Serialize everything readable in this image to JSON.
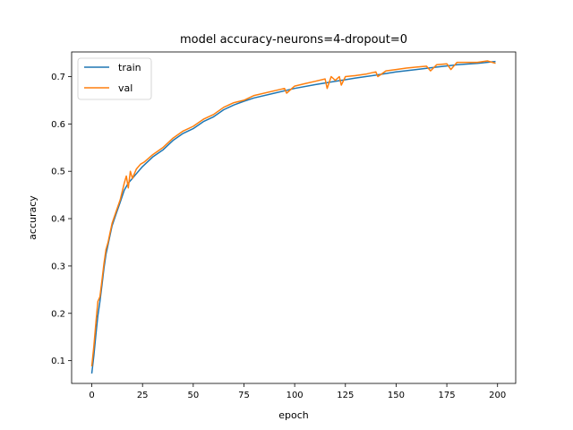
{
  "chart_data": {
    "type": "line",
    "title": "model accuracy-neurons=4-dropout=0",
    "xlabel": "epoch",
    "ylabel": "accuracy",
    "xlim": [
      -9.95,
      208.95
    ],
    "ylim": [
      0.052,
      0.752
    ],
    "xticks": [
      0,
      25,
      50,
      75,
      100,
      125,
      150,
      175,
      200
    ],
    "yticks": [
      0.1,
      0.2,
      0.3,
      0.4,
      0.5,
      0.6,
      0.7
    ],
    "ytick_labels": [
      "0.1",
      "0.2",
      "0.3",
      "0.4",
      "0.5",
      "0.6",
      "0.7"
    ],
    "grid": false,
    "legend": "upper left",
    "series": [
      {
        "name": "train",
        "color": "#1f77b4",
        "x": [
          0,
          1,
          2,
          3,
          4,
          5,
          6,
          7,
          8,
          9,
          10,
          12,
          14,
          16,
          18,
          20,
          22,
          25,
          30,
          35,
          40,
          45,
          50,
          55,
          60,
          65,
          70,
          75,
          80,
          90,
          100,
          110,
          120,
          130,
          140,
          150,
          160,
          170,
          180,
          190,
          199
        ],
        "values": [
          0.073,
          0.11,
          0.155,
          0.195,
          0.225,
          0.26,
          0.295,
          0.325,
          0.345,
          0.365,
          0.385,
          0.41,
          0.435,
          0.46,
          0.475,
          0.485,
          0.495,
          0.51,
          0.53,
          0.545,
          0.565,
          0.58,
          0.59,
          0.605,
          0.615,
          0.63,
          0.64,
          0.648,
          0.655,
          0.665,
          0.675,
          0.683,
          0.69,
          0.697,
          0.703,
          0.71,
          0.715,
          0.72,
          0.725,
          0.728,
          0.732
        ]
      },
      {
        "name": "val",
        "color": "#ff7f0e",
        "x": [
          0,
          1,
          2,
          3,
          4,
          5,
          6,
          7,
          8,
          9,
          10,
          12,
          14,
          16,
          17,
          18,
          19,
          20,
          21,
          22,
          24,
          26,
          30,
          35,
          40,
          45,
          50,
          55,
          60,
          65,
          70,
          75,
          80,
          90,
          95,
          96,
          100,
          105,
          110,
          115,
          116,
          118,
          120,
          122,
          123,
          125,
          130,
          135,
          140,
          141,
          145,
          150,
          155,
          160,
          165,
          167,
          170,
          175,
          177,
          180,
          185,
          190,
          195,
          199
        ],
        "values": [
          0.088,
          0.13,
          0.18,
          0.225,
          0.235,
          0.27,
          0.305,
          0.335,
          0.35,
          0.37,
          0.39,
          0.415,
          0.44,
          0.475,
          0.49,
          0.465,
          0.5,
          0.485,
          0.495,
          0.505,
          0.515,
          0.52,
          0.535,
          0.55,
          0.57,
          0.585,
          0.595,
          0.61,
          0.62,
          0.635,
          0.645,
          0.65,
          0.66,
          0.67,
          0.675,
          0.665,
          0.68,
          0.685,
          0.69,
          0.695,
          0.675,
          0.7,
          0.692,
          0.7,
          0.682,
          0.7,
          0.702,
          0.705,
          0.71,
          0.7,
          0.712,
          0.715,
          0.718,
          0.72,
          0.722,
          0.712,
          0.725,
          0.727,
          0.715,
          0.73,
          0.73,
          0.73,
          0.733,
          0.728
        ]
      }
    ]
  }
}
